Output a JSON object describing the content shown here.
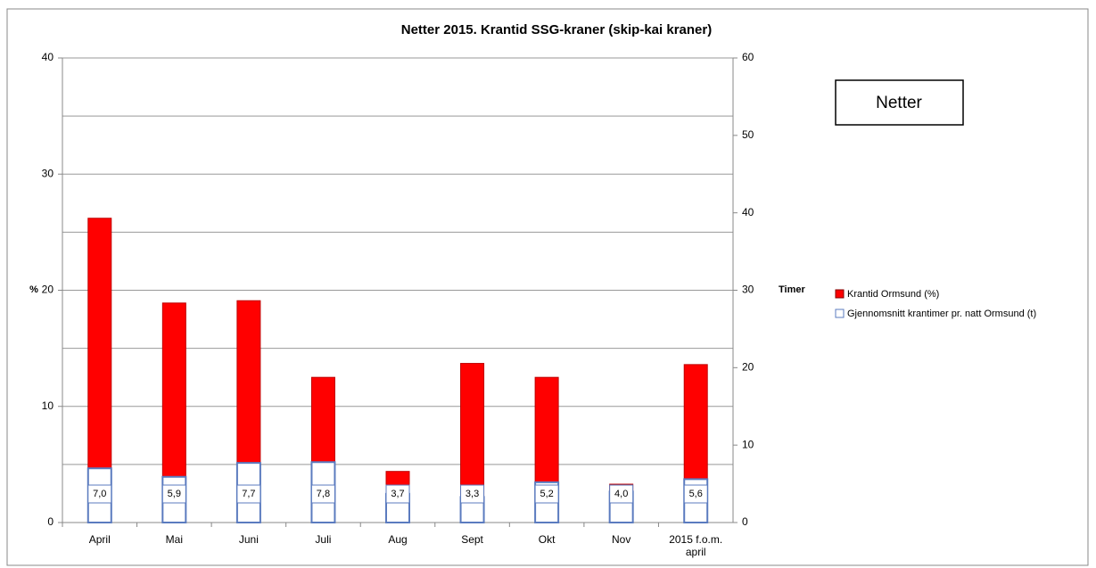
{
  "chart_data": {
    "type": "bar",
    "title": "Netter 2015. Krantid SSG-kraner (skip-kai kraner)",
    "annotation": "Netter",
    "ylabel": "%",
    "y2label": "Timer",
    "categories": [
      "April",
      "Mai",
      "Juni",
      "Juli",
      "Aug",
      "Sept",
      "Okt",
      "Nov",
      "2015 f.o.m. april"
    ],
    "series": [
      {
        "name": "Krantid Ormsund (%)",
        "color": "#ff0000",
        "values": [
          26.2,
          18.9,
          19.1,
          12.5,
          4.4,
          13.7,
          12.5,
          3.3,
          13.6
        ]
      },
      {
        "name": "Gjennomsnitt krantimer pr. natt Ormsund (t)",
        "color": "#ffffff",
        "axis": "y2",
        "values": [
          7.0,
          5.9,
          7.7,
          7.8,
          3.7,
          3.3,
          5.2,
          4.0,
          5.6
        ],
        "value_labels": [
          "7,0",
          "5,9",
          "7,7",
          "7,8",
          "3,7",
          "3,3",
          "5,2",
          "4,0",
          "5,6"
        ]
      }
    ],
    "ylim": [
      0,
      40
    ],
    "yticks": [
      0,
      10,
      20,
      30,
      40
    ],
    "y2lim": [
      0,
      60
    ],
    "y2ticks": [
      0,
      10,
      20,
      30,
      40,
      50,
      60
    ],
    "grid": true,
    "ygrid": [
      5,
      10,
      15,
      20,
      25,
      30,
      35,
      40
    ],
    "legend": "right"
  }
}
